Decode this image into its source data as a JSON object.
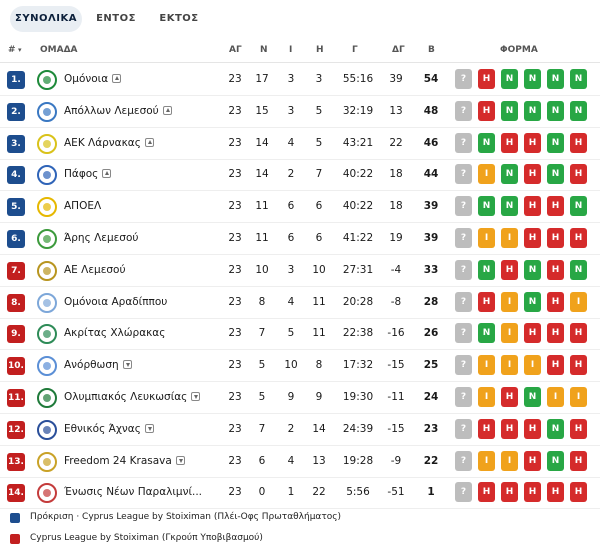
{
  "tabs": [
    {
      "label": "ΣΥΝΟΛΙΚΑ",
      "active": true
    },
    {
      "label": "ΕΝΤΟΣ",
      "active": false
    },
    {
      "label": "ΕΚΤΟΣ",
      "active": false
    }
  ],
  "columns": {
    "rank": "#",
    "team": "ΟΜΑΔΑ",
    "played": "ΑΓ",
    "wins": "Ν",
    "draws": "Ι",
    "losses": "Η",
    "goals": "Γ",
    "goal_diff": "ΔΓ",
    "points": "Β",
    "form": "ΦΟΡΜΑ"
  },
  "colors": {
    "promotion": "#1d4d8e",
    "relegation": "#c21f1f",
    "win": "#28a745",
    "draw": "#f0a21c",
    "loss": "#d52b2b",
    "upcoming": "#bdbdbd"
  },
  "rows": [
    {
      "rank": "1.",
      "zone": "promotion",
      "team": "Ομόνοια",
      "trend": "up",
      "played": "23",
      "wins": "17",
      "draws": "3",
      "losses": "3",
      "goals": "55:16",
      "goal_diff": "39",
      "points": "54",
      "form": [
        "?",
        "Η",
        "Ν",
        "Ν",
        "Ν",
        "Ν"
      ],
      "logo_color": "#1e8a3a"
    },
    {
      "rank": "2.",
      "zone": "promotion",
      "team": "Απόλλων Λεμεσού",
      "trend": "up",
      "played": "23",
      "wins": "15",
      "draws": "3",
      "losses": "5",
      "goals": "32:19",
      "goal_diff": "13",
      "points": "48",
      "form": [
        "?",
        "Η",
        "Ν",
        "Ν",
        "Ν",
        "Ν"
      ],
      "logo_color": "#3a78c2"
    },
    {
      "rank": "3.",
      "zone": "promotion",
      "team": "ΑΕΚ Λάρνακας",
      "trend": "up",
      "played": "23",
      "wins": "14",
      "draws": "4",
      "losses": "5",
      "goals": "43:21",
      "goal_diff": "22",
      "points": "46",
      "form": [
        "?",
        "Ν",
        "Η",
        "Η",
        "Ν",
        "Η"
      ],
      "logo_color": "#d9c21a"
    },
    {
      "rank": "4.",
      "zone": "promotion",
      "team": "Πάφος",
      "trend": "up",
      "played": "23",
      "wins": "14",
      "draws": "2",
      "losses": "7",
      "goals": "40:22",
      "goal_diff": "18",
      "points": "44",
      "form": [
        "?",
        "Ι",
        "Ν",
        "Η",
        "Ν",
        "Η"
      ],
      "logo_color": "#2f64b8"
    },
    {
      "rank": "5.",
      "zone": "promotion",
      "team": "ΑΠΟΕΛ",
      "trend": "",
      "played": "23",
      "wins": "11",
      "draws": "6",
      "losses": "6",
      "goals": "40:22",
      "goal_diff": "18",
      "points": "39",
      "form": [
        "?",
        "Ν",
        "Ν",
        "Η",
        "Η",
        "Ν"
      ],
      "logo_color": "#e6b800"
    },
    {
      "rank": "6.",
      "zone": "promotion",
      "team": "Άρης Λεμεσού",
      "trend": "",
      "played": "23",
      "wins": "11",
      "draws": "6",
      "losses": "6",
      "goals": "41:22",
      "goal_diff": "19",
      "points": "39",
      "form": [
        "?",
        "Ι",
        "Ι",
        "Η",
        "Η",
        "Η"
      ],
      "logo_color": "#3c9a3c"
    },
    {
      "rank": "7.",
      "zone": "relegation",
      "team": "ΑΕ Λεμεσού",
      "trend": "",
      "played": "23",
      "wins": "10",
      "draws": "3",
      "losses": "10",
      "goals": "27:31",
      "goal_diff": "-4",
      "points": "33",
      "form": [
        "?",
        "Ν",
        "Η",
        "Ν",
        "Η",
        "Ν"
      ],
      "logo_color": "#b8951f"
    },
    {
      "rank": "8.",
      "zone": "relegation",
      "team": "Ομόνοια Αραδίππου",
      "trend": "",
      "played": "23",
      "wins": "8",
      "draws": "4",
      "losses": "11",
      "goals": "20:28",
      "goal_diff": "-8",
      "points": "28",
      "form": [
        "?",
        "Η",
        "Ι",
        "Ν",
        "Η",
        "Ι"
      ],
      "logo_color": "#7da7d9"
    },
    {
      "rank": "9.",
      "zone": "relegation",
      "team": "Ακρίτας Χλώρακας",
      "trend": "",
      "played": "23",
      "wins": "7",
      "draws": "5",
      "losses": "11",
      "goals": "22:38",
      "goal_diff": "-16",
      "points": "26",
      "form": [
        "?",
        "Ν",
        "Ι",
        "Η",
        "Η",
        "Η"
      ],
      "logo_color": "#2e8b57"
    },
    {
      "rank": "10.",
      "zone": "relegation",
      "team": "Ανόρθωση",
      "trend": "down",
      "played": "23",
      "wins": "5",
      "draws": "10",
      "losses": "8",
      "goals": "17:32",
      "goal_diff": "-15",
      "points": "25",
      "form": [
        "?",
        "Ι",
        "Ι",
        "Ι",
        "Η",
        "Η"
      ],
      "logo_color": "#5b8fd6"
    },
    {
      "rank": "11.",
      "zone": "relegation",
      "team": "Ολυμπιακός Λευκωσίας",
      "trend": "down",
      "played": "23",
      "wins": "5",
      "draws": "9",
      "losses": "9",
      "goals": "19:30",
      "goal_diff": "-11",
      "points": "24",
      "form": [
        "?",
        "Ι",
        "Η",
        "Ν",
        "Ι",
        "Ι"
      ],
      "logo_color": "#1f7a3a"
    },
    {
      "rank": "12.",
      "zone": "relegation",
      "team": "Εθνικός Άχνας",
      "trend": "down",
      "played": "23",
      "wins": "7",
      "draws": "2",
      "losses": "14",
      "goals": "24:39",
      "goal_diff": "-15",
      "points": "23",
      "form": [
        "?",
        "Η",
        "Η",
        "Η",
        "Ν",
        "Η"
      ],
      "logo_color": "#2a4f9a"
    },
    {
      "rank": "13.",
      "zone": "relegation",
      "team": "Freedom 24 Krasava",
      "trend": "down",
      "played": "23",
      "wins": "6",
      "draws": "4",
      "losses": "13",
      "goals": "19:28",
      "goal_diff": "-9",
      "points": "22",
      "form": [
        "?",
        "Ι",
        "Ι",
        "Η",
        "Ν",
        "Η"
      ],
      "logo_color": "#c9a227"
    },
    {
      "rank": "14.",
      "zone": "relegation",
      "team": "Ένωσις Νέων Παραλιμνί...",
      "trend": "",
      "played": "23",
      "wins": "0",
      "draws": "1",
      "losses": "22",
      "goals": "5:56",
      "goal_diff": "-51",
      "points": "1",
      "form": [
        "?",
        "Η",
        "Η",
        "Η",
        "Η",
        "Η"
      ],
      "logo_color": "#c43b3b"
    }
  ],
  "legend": [
    {
      "zone": "promotion",
      "text": "Πρόκριση · Cyprus League by Stoiximan (Πλέι-Οφς Πρωταθλήματος)"
    },
    {
      "zone": "relegation",
      "text": "Cyprus League by Stoiximan (Γκρούπ Υποβιβασμού)"
    }
  ]
}
